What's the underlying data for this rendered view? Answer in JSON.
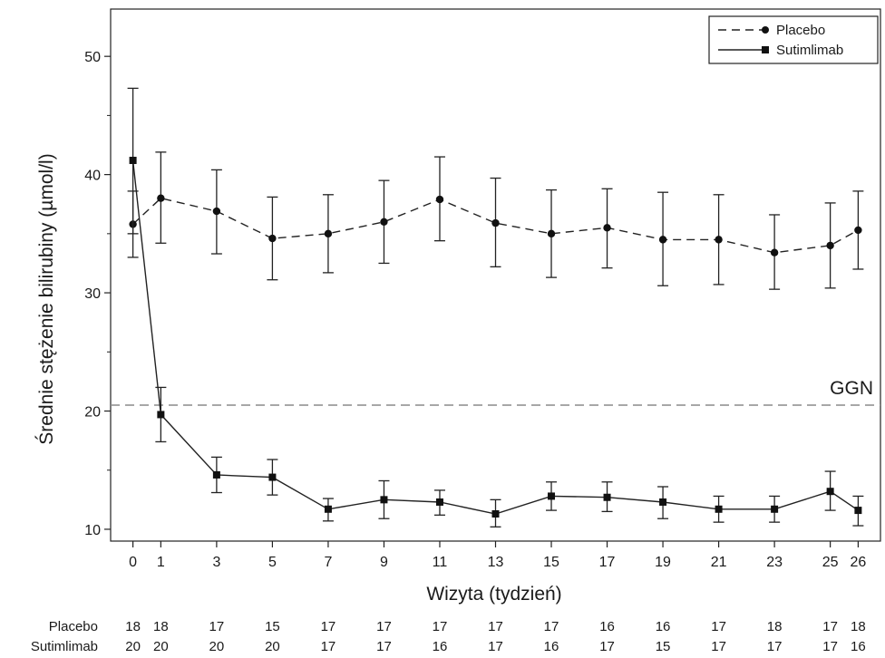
{
  "chart_data": {
    "type": "line",
    "xlabel": "Wizyta (tydzień)",
    "ylabel": "Średnie stężenie bilirubiny (µmol/l)",
    "x_ticks": [
      0,
      1,
      3,
      5,
      7,
      9,
      11,
      13,
      15,
      17,
      19,
      21,
      23,
      25,
      26
    ],
    "y_ticks": [
      10,
      20,
      30,
      40,
      50
    ],
    "xlim": [
      -0.8,
      26.8
    ],
    "ylim": [
      9,
      54
    ],
    "x": [
      0,
      1,
      3,
      5,
      7,
      9,
      11,
      13,
      15,
      17,
      19,
      21,
      23,
      25,
      26
    ],
    "series": [
      {
        "name": "Placebo",
        "line": "dashed",
        "marker": "circle",
        "values": [
          35.8,
          38.0,
          36.9,
          34.6,
          35.0,
          36.0,
          37.9,
          35.9,
          35.0,
          35.5,
          34.5,
          34.5,
          33.4,
          34.0,
          35.3
        ],
        "err_low": [
          33.0,
          34.2,
          33.3,
          31.1,
          31.7,
          32.5,
          34.4,
          32.2,
          31.3,
          32.1,
          30.6,
          30.7,
          30.3,
          30.4,
          32.0
        ],
        "err_high": [
          38.6,
          41.9,
          40.4,
          38.1,
          38.3,
          39.5,
          41.5,
          39.7,
          38.7,
          38.8,
          38.5,
          38.3,
          36.6,
          37.6,
          38.6
        ]
      },
      {
        "name": "Sutimlimab",
        "line": "solid",
        "marker": "square",
        "values": [
          41.2,
          19.7,
          14.6,
          14.4,
          11.7,
          12.5,
          12.3,
          11.3,
          12.8,
          12.7,
          12.3,
          11.7,
          11.7,
          13.2,
          11.6
        ],
        "err_low": [
          35.0,
          17.4,
          13.1,
          12.9,
          10.7,
          10.9,
          11.2,
          10.2,
          11.6,
          11.5,
          10.9,
          10.6,
          10.6,
          11.6,
          10.3
        ],
        "err_high": [
          47.3,
          22.0,
          16.1,
          15.9,
          12.6,
          14.1,
          13.3,
          12.5,
          14.0,
          14.0,
          13.6,
          12.8,
          12.8,
          14.9,
          12.8
        ]
      }
    ],
    "reference_line": {
      "y": 20.5,
      "label": "GGN"
    },
    "legend": {
      "position": "top-right",
      "entries": [
        "Placebo",
        "Sutimlimab"
      ]
    },
    "n_at_visit": [
      {
        "name": "Placebo",
        "values": [
          "18",
          "18",
          "17",
          "15",
          "17",
          "17",
          "17",
          "17",
          "17",
          "16",
          "16",
          "17",
          "18",
          "17",
          "18"
        ]
      },
      {
        "name": "Sutimlimab",
        "values": [
          "20",
          "20",
          "20",
          "20",
          "17",
          "17",
          "16",
          "17",
          "16",
          "17",
          "15",
          "17",
          "17",
          "17",
          "16"
        ]
      }
    ]
  }
}
